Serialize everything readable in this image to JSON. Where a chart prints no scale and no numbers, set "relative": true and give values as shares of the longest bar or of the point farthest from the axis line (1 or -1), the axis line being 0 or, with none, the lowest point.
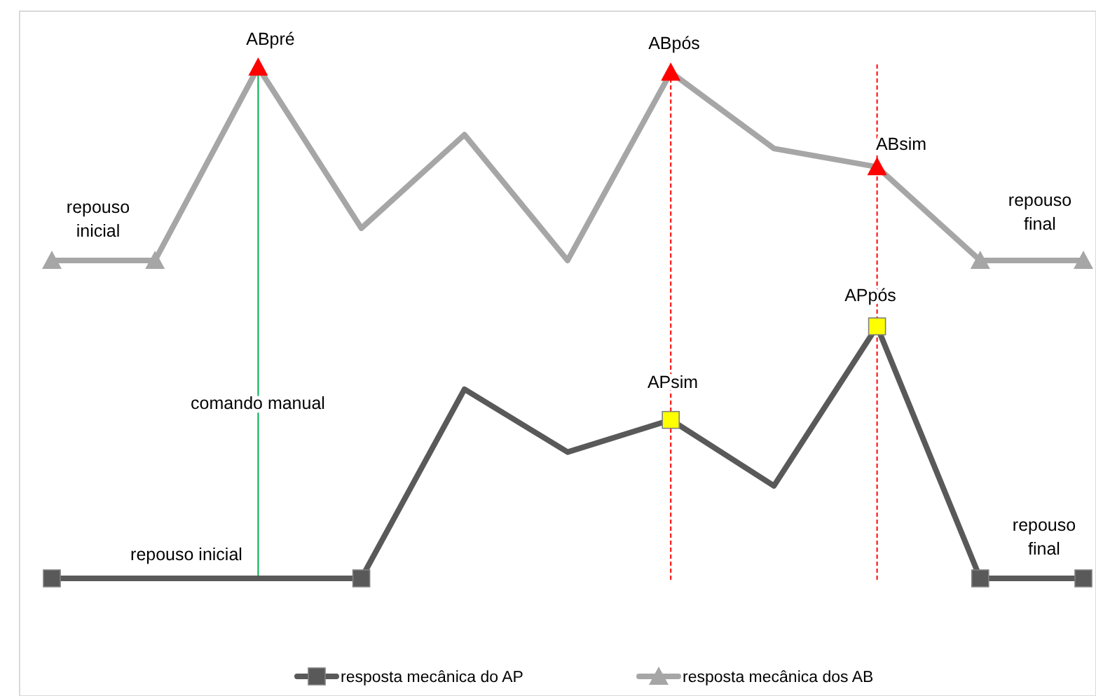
{
  "chart_data": {
    "type": "line",
    "relative": true,
    "categories": [
      null,
      null,
      null,
      null,
      null,
      null,
      null,
      null,
      null,
      null,
      null
    ],
    "series": [
      {
        "name": "resposta mecânica do AP",
        "color": "#595959",
        "marker": "square",
        "values": [
          0,
          0,
          0,
          0,
          0.37,
          0.247,
          0.31,
          0.181,
          0.493,
          0,
          0
        ],
        "colors": [
          "#595959",
          null,
          null,
          "#595959",
          null,
          null,
          "#ffff00",
          null,
          "#ffff00",
          "#595959",
          "#595959"
        ]
      },
      {
        "name": "resposta mecânica dos AB",
        "color": "#a6a6a6",
        "marker": "triangle",
        "values": [
          0.622,
          0.622,
          1,
          0.685,
          0.868,
          0.622,
          0.99,
          0.841,
          0.805,
          0.622,
          0.622
        ],
        "colors": [
          "#a6a6a6",
          "#a6a6a6",
          "#ff0000",
          null,
          null,
          null,
          "#ff0000",
          null,
          "#ff0000",
          "#a6a6a6",
          "#a6a6a6"
        ]
      }
    ],
    "annotations": [
      "ABpré",
      "ABpós",
      "ABsim",
      "repouso inicial",
      "repouso final",
      "comando manual",
      "APsim",
      "APpós",
      "repouso inicial",
      "repouso final"
    ],
    "legend": "bottom",
    "grid": false,
    "tick_labels": false
  }
}
